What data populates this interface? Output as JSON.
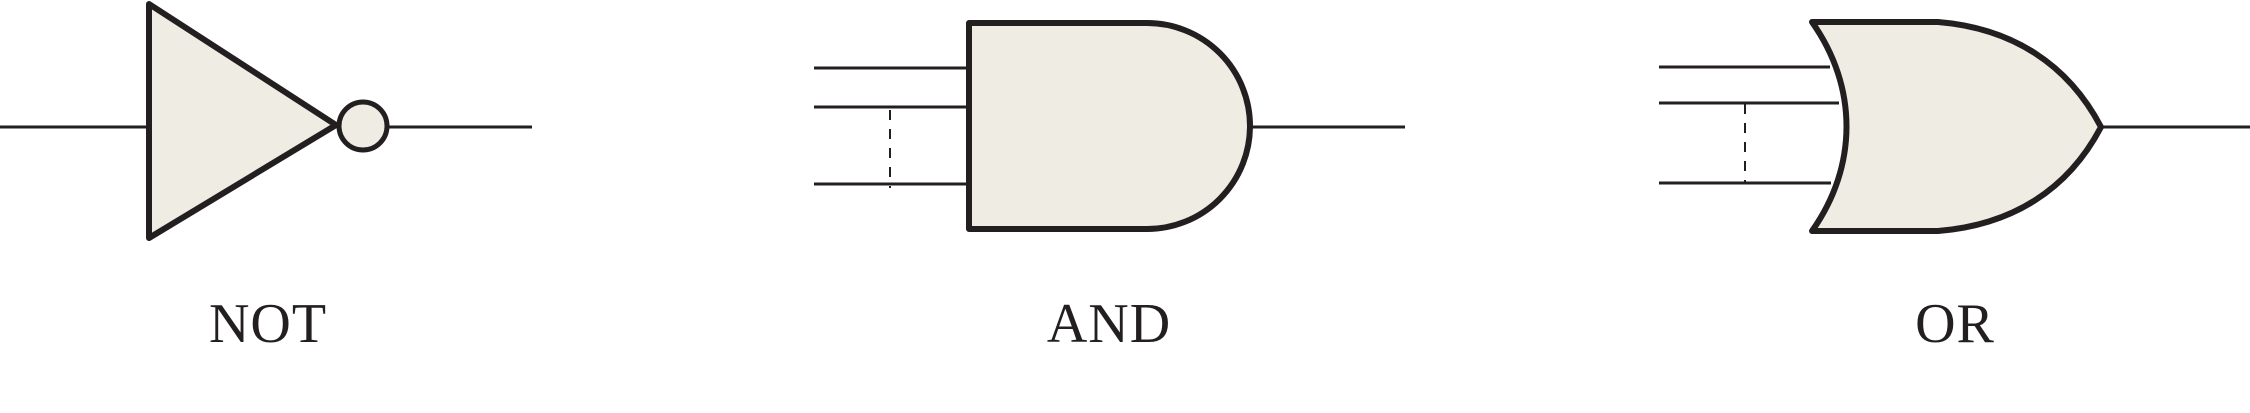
{
  "gates": [
    {
      "type": "NOT",
      "label": "NOT"
    },
    {
      "type": "AND",
      "label": "AND"
    },
    {
      "type": "OR",
      "label": "OR"
    }
  ],
  "colors": {
    "stroke": "#231f20",
    "fill": "#efece4",
    "background": "#ffffff"
  }
}
